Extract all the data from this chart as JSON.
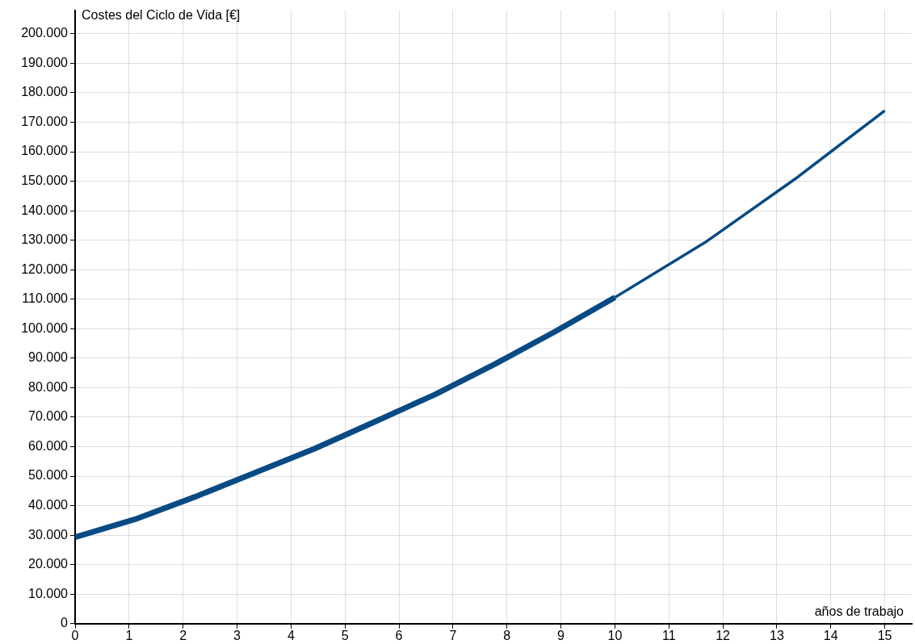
{
  "chart_data": {
    "type": "line",
    "xlabel": "años de trabajo",
    "ylabel": "Costes del Ciclo de Vida [€]",
    "series": [
      {
        "color": "#084a83",
        "x": [
          0,
          1.111,
          2.222,
          3.333,
          4.444,
          5.556,
          6.667,
          7.778,
          8.889,
          10
        ],
        "values": [
          29300,
          35400,
          43000,
          51200,
          59400,
          68500,
          77700,
          88000,
          99000,
          110600
        ]
      },
      {
        "color": "#084a83",
        "x": [
          10,
          11.667,
          13.333,
          15
        ],
        "values": [
          110600,
          129200,
          150700,
          173900
        ]
      }
    ],
    "xlim": [
      0,
      15.5
    ],
    "xticks": [
      0,
      1,
      2,
      3,
      4,
      5,
      6,
      7,
      8,
      9,
      10,
      11,
      12,
      13,
      14,
      15
    ],
    "ylim": [
      0,
      208000
    ],
    "yticks": [
      0,
      {
        "value": 10000,
        "label": "10.000"
      },
      {
        "value": 20000,
        "label": "20.000"
      },
      {
        "value": 30000,
        "label": "30.000"
      },
      {
        "value": 40000,
        "label": "40.000"
      },
      {
        "value": 50000,
        "label": "50.000"
      },
      {
        "value": 60000,
        "label": "60.000"
      },
      {
        "value": 70000,
        "label": "70.000"
      },
      {
        "value": 80000,
        "label": "80.000"
      },
      {
        "value": 90000,
        "label": "90.000"
      },
      {
        "value": 100000,
        "label": "100.000"
      },
      {
        "value": 110000,
        "label": "110.000"
      },
      {
        "value": 120000,
        "label": "120.000"
      },
      {
        "value": 130000,
        "label": "130.000"
      },
      {
        "value": 140000,
        "label": "140.000"
      },
      {
        "value": 150000,
        "label": "150.000"
      },
      {
        "value": 160000,
        "label": "160.000"
      },
      {
        "value": 170000,
        "label": "170.000"
      },
      {
        "value": 180000,
        "label": "180.000"
      },
      {
        "value": 190000,
        "label": "190.000"
      },
      {
        "value": 200000,
        "label": "200.000"
      }
    ],
    "grid": true,
    "marker": "none",
    "line_style": "solid"
  }
}
